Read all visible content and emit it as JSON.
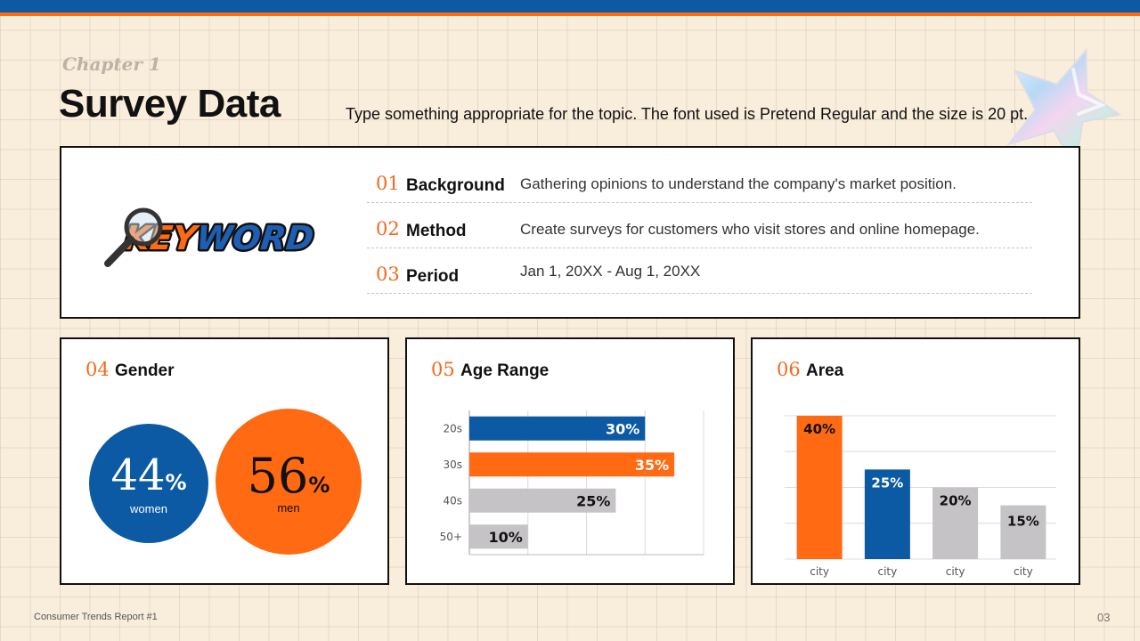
{
  "header": {
    "chapter": "Chapter 1",
    "title": "Survey Data",
    "subtitle": "Type something appropriate for the topic. The font used is Pretend Regular and the size is 20 pt."
  },
  "keyword_logo": {
    "text_part1": "KEY",
    "text_part2": "WORD",
    "icon": "magnifier-icon"
  },
  "info_rows": [
    {
      "num": "01",
      "key": "Background",
      "value": "Gathering opinions to understand the company's market position."
    },
    {
      "num": "02",
      "key": "Method",
      "value": "Create surveys for customers who visit stores and online homepage."
    },
    {
      "num": "03",
      "key": "Period",
      "value": "Jan 1, 20XX - Aug 1, 20XX"
    }
  ],
  "cards": {
    "gender": {
      "num": "04",
      "title": "Gender",
      "women": {
        "value": "44",
        "unit": "%",
        "label": "women"
      },
      "men": {
        "value": "56",
        "unit": "%",
        "label": "men"
      }
    },
    "age": {
      "num": "05",
      "title": "Age Range"
    },
    "area": {
      "num": "06",
      "title": "Area"
    }
  },
  "chart_data": [
    {
      "type": "bar",
      "orientation": "horizontal",
      "categories": [
        "20s",
        "30s",
        "40s",
        "50+"
      ],
      "values": [
        30,
        35,
        25,
        10
      ],
      "labels": [
        "30%",
        "35%",
        "25%",
        "10%"
      ],
      "colors": [
        "#0b5aa3",
        "#ff6a13",
        "#c5c3c6",
        "#c5c3c6"
      ],
      "xlim": [
        0,
        40
      ],
      "grid": true
    },
    {
      "type": "bar",
      "orientation": "vertical",
      "categories": [
        "city",
        "city",
        "city",
        "city"
      ],
      "values": [
        40,
        25,
        20,
        15
      ],
      "labels": [
        "40%",
        "25%",
        "20%",
        "15%"
      ],
      "colors": [
        "#ff6a13",
        "#0b5aa3",
        "#c5c3c6",
        "#c5c3c6"
      ],
      "ylim": [
        0,
        40
      ],
      "grid": true
    }
  ],
  "footer": {
    "left": "Consumer Trends Report #1",
    "page": "03"
  },
  "colors": {
    "blue": "#0b5aa3",
    "orange": "#ff6a13",
    "gray": "#c5c3c6",
    "accent_text": "#f26a1e"
  }
}
